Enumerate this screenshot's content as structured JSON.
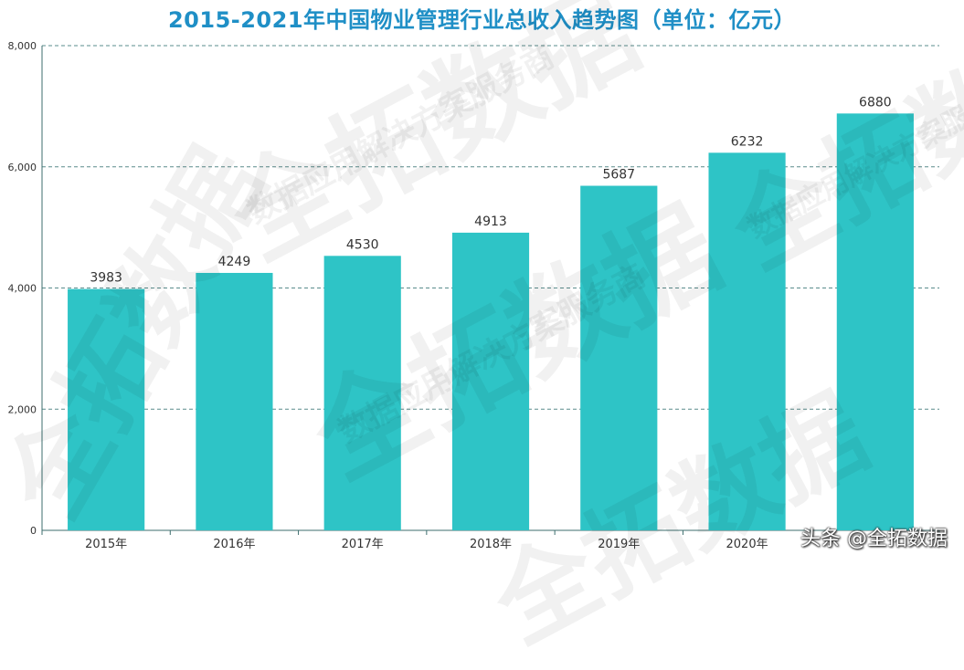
{
  "chart_data": {
    "type": "bar",
    "title": "2015-2021年中国物业管理行业总收入趋势图（单位：亿元）",
    "categories": [
      "2015年",
      "2016年",
      "2017年",
      "2018年",
      "2019年",
      "2020年",
      ""
    ],
    "values": [
      3983,
      4249,
      4530,
      4913,
      5687,
      6232,
      6880
    ],
    "ylim": [
      0,
      8000
    ],
    "yticks": [
      "0",
      "2,000",
      "4,000",
      "6,000",
      "8,000"
    ],
    "ytick_values": [
      0,
      2000,
      4000,
      6000,
      8000
    ],
    "grid": true,
    "bar_color": "#2ec4c6",
    "title_color": "#1f8fc6"
  },
  "watermark": {
    "brand": "全拓数据",
    "slogan": "数据应用解决方案服务商"
  },
  "footer": {
    "source": "头条 @全拓数据"
  }
}
